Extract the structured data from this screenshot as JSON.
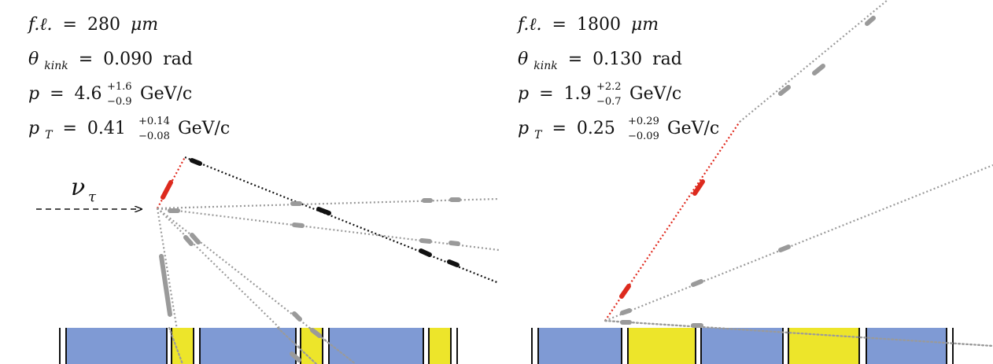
{
  "colors": {
    "track_gray": "#9a9a9a",
    "track_black": "#111111",
    "track_red": "#e0281c",
    "segment_red": "#dd2a1e",
    "emulsion_blue": "#7f9ad4",
    "emulsion_yellow": "#ede52a",
    "arrow": "#111111"
  },
  "left_event": {
    "fl": {
      "sym": "f.ℓ.",
      "eq": "=",
      "value": "280",
      "unit": "μm"
    },
    "theta": {
      "sym": "θ",
      "sub": "kink",
      "eq": "=",
      "value": "0.090",
      "unit": "rad"
    },
    "p": {
      "sym": "p",
      "eq": "=",
      "value": "4.6",
      "sup": "+1.6",
      "sub": "−0.9",
      "unit": "GeV/c"
    },
    "pt": {
      "sym": "p",
      "sym_sub": "T",
      "eq": "=",
      "value": "0.41",
      "sup": "+0.14",
      "sub": "−0.08",
      "unit": "GeV/c"
    },
    "neutrino": {
      "sym": "ν",
      "sub": "τ"
    }
  },
  "right_event": {
    "fl": {
      "sym": "f.ℓ.",
      "eq": "=",
      "value": "1800",
      "unit": "μm"
    },
    "theta": {
      "sym": "θ",
      "sub": "kink",
      "eq": "=",
      "value": "0.130",
      "unit": "rad"
    },
    "p": {
      "sym": "p",
      "eq": "=",
      "value": "1.9",
      "sup": "+2.2",
      "sub": "−0.7",
      "unit": "GeV/c"
    },
    "pt": {
      "sym": "p",
      "sym_sub": "T",
      "eq": "=",
      "value": "0.25",
      "sup": "+0.29",
      "sub": "−0.09",
      "unit": "GeV/c"
    }
  }
}
